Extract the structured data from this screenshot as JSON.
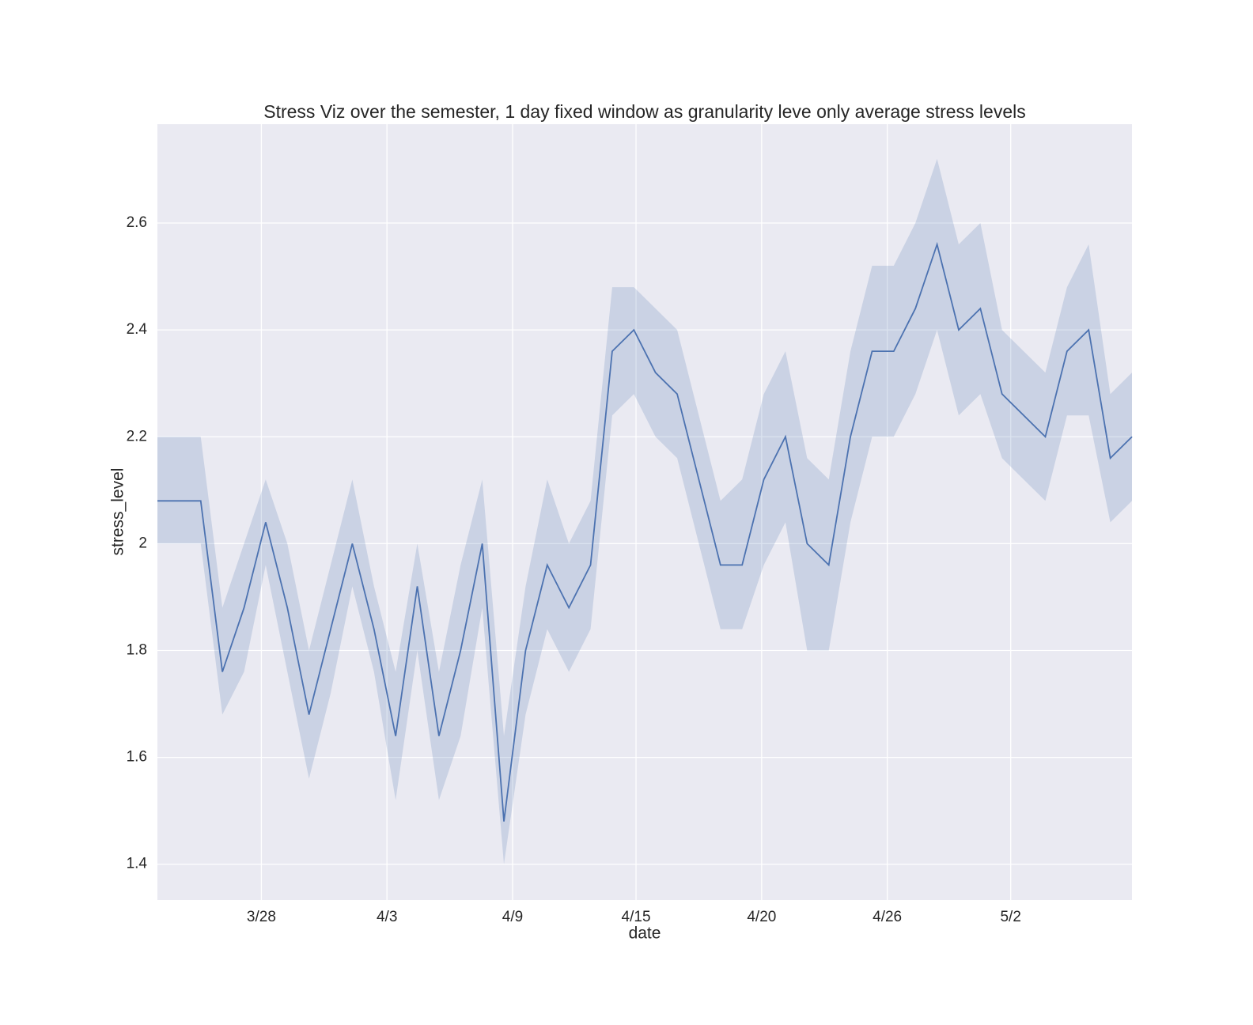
{
  "chart_data": {
    "type": "line",
    "title": "Stress Viz over the semester, 1 day fixed window as granularity leve only average stress levels",
    "x_label": "date",
    "y_label": "stress_level",
    "x": [
      0,
      2,
      3,
      4,
      5,
      6,
      7,
      8,
      9,
      10,
      11,
      12,
      13,
      14,
      15,
      16,
      17,
      18,
      19,
      20,
      21,
      22,
      23,
      24,
      26,
      27,
      28,
      29,
      30,
      31,
      32,
      33,
      34,
      35,
      36,
      37,
      38,
      39,
      41,
      42,
      43,
      44,
      45
    ],
    "values": [
      2.08,
      2.08,
      1.76,
      1.88,
      2.04,
      1.88,
      1.68,
      1.84,
      2.0,
      1.84,
      1.64,
      1.92,
      1.64,
      1.8,
      2.0,
      1.48,
      1.8,
      1.96,
      1.88,
      1.96,
      2.36,
      2.4,
      2.32,
      2.28,
      1.96,
      1.96,
      2.12,
      2.2,
      2.0,
      1.96,
      2.2,
      2.36,
      2.36,
      2.44,
      2.56,
      2.4,
      2.44,
      2.28,
      2.2,
      2.36,
      2.4,
      2.16,
      2.2
    ],
    "lower": [
      2.0,
      2.0,
      1.68,
      1.76,
      1.96,
      1.76,
      1.56,
      1.72,
      1.92,
      1.76,
      1.52,
      1.8,
      1.52,
      1.64,
      1.88,
      1.4,
      1.68,
      1.84,
      1.76,
      1.84,
      2.24,
      2.28,
      2.2,
      2.16,
      1.84,
      1.84,
      1.96,
      2.04,
      1.8,
      1.8,
      2.04,
      2.2,
      2.2,
      2.28,
      2.4,
      2.24,
      2.28,
      2.16,
      2.08,
      2.24,
      2.24,
      2.04,
      2.08
    ],
    "upper": [
      2.2,
      2.2,
      1.88,
      2.0,
      2.12,
      2.0,
      1.8,
      1.96,
      2.12,
      1.92,
      1.76,
      2.0,
      1.76,
      1.96,
      2.12,
      1.64,
      1.92,
      2.12,
      2.0,
      2.08,
      2.48,
      2.48,
      2.44,
      2.4,
      2.08,
      2.12,
      2.28,
      2.36,
      2.16,
      2.12,
      2.36,
      2.52,
      2.52,
      2.6,
      2.72,
      2.56,
      2.6,
      2.4,
      2.32,
      2.48,
      2.56,
      2.28,
      2.32
    ],
    "color": "#4c72b0",
    "band_opacity": 0.2,
    "background": "#eaeaf2",
    "grid": true,
    "xlim": [
      0,
      45
    ],
    "ylim": [
      1.333,
      2.785
    ],
    "xticks": [
      {
        "value": 4.8,
        "label": "3/28"
      },
      {
        "value": 10.6,
        "label": "4/3"
      },
      {
        "value": 16.4,
        "label": "4/9"
      },
      {
        "value": 22.1,
        "label": "4/15"
      },
      {
        "value": 27.9,
        "label": "4/20"
      },
      {
        "value": 33.7,
        "label": "4/26"
      },
      {
        "value": 39.4,
        "label": "5/2"
      }
    ],
    "yticks": [
      1.4,
      1.6,
      1.8,
      2.0,
      2.2,
      2.4,
      2.6
    ]
  }
}
